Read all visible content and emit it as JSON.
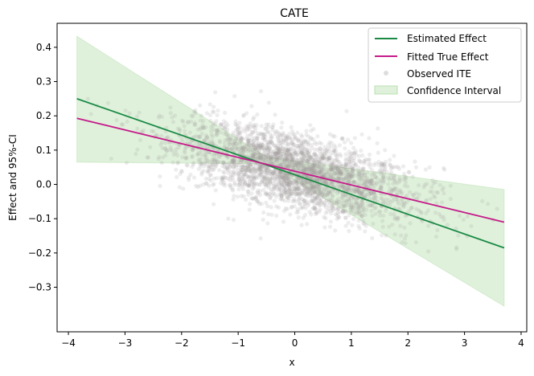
{
  "chart_data": {
    "type": "line",
    "title": "CATE",
    "xlabel": "x",
    "ylabel": "Effect and 95%-CI",
    "xlim": [
      -4.2,
      4.1
    ],
    "ylim": [
      -0.43,
      0.47
    ],
    "xticks": [
      -4,
      -3,
      -2,
      -1,
      0,
      1,
      2,
      3,
      4
    ],
    "xtick_labels": [
      "−4",
      "−3",
      "−2",
      "−1",
      "0",
      "1",
      "2",
      "3",
      "4"
    ],
    "yticks": [
      -0.3,
      -0.2,
      -0.1,
      0.0,
      0.1,
      0.2,
      0.3,
      0.4
    ],
    "ytick_labels": [
      "−0.3",
      "−0.2",
      "−0.1",
      "0.0",
      "0.1",
      "0.2",
      "0.3",
      "0.4"
    ],
    "grid": false,
    "legend_position": "top-right",
    "series": [
      {
        "name": "Estimated Effect",
        "kind": "line",
        "color": "#1a8a45",
        "x": [
          -3.85,
          3.7
        ],
        "y": [
          0.25,
          -0.185
        ]
      },
      {
        "name": "Fitted True Effect",
        "kind": "line",
        "color": "#c51b8a",
        "x": [
          -3.85,
          3.7
        ],
        "y": [
          0.193,
          -0.11
        ]
      },
      {
        "name": "Observed ITE",
        "kind": "scatter",
        "color": "#a09a9a",
        "alpha": 0.18,
        "n_points": 3000,
        "x_range": [
          -3.85,
          3.7
        ],
        "trend": {
          "intercept": 0.04,
          "slope": -0.04
        },
        "spread_sd": 0.055
      },
      {
        "name": "Confidence Interval",
        "kind": "band",
        "color": "#b8e0b0",
        "x": [
          -3.85,
          -0.5,
          3.7
        ],
        "lower": [
          0.065,
          0.06,
          -0.355
        ],
        "upper": [
          0.432,
          0.08,
          -0.015
        ]
      }
    ]
  }
}
